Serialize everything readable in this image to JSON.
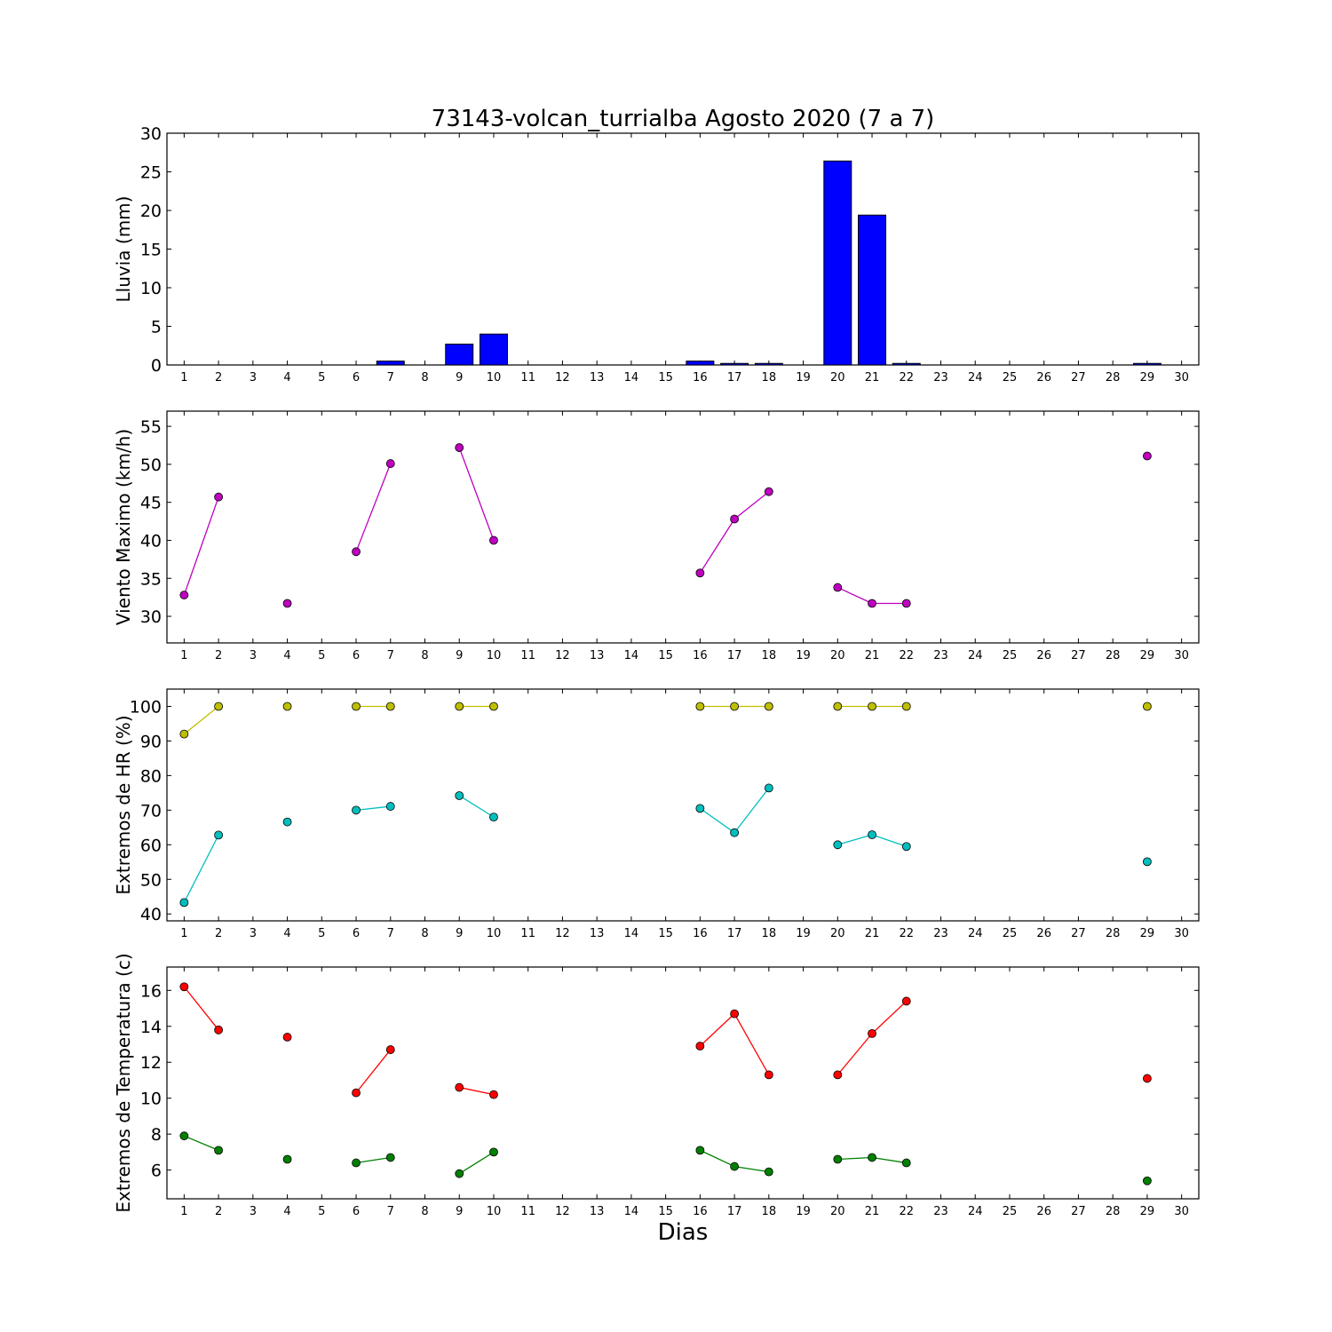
{
  "chart_data": {
    "title": "73143-volcan_turrialba Agosto 2020  (7 a 7)",
    "xlabel": "Dias",
    "x_ticks": [
      1,
      2,
      3,
      4,
      5,
      6,
      7,
      8,
      9,
      10,
      11,
      12,
      13,
      14,
      15,
      16,
      17,
      18,
      19,
      20,
      21,
      22,
      23,
      24,
      25,
      26,
      27,
      28,
      29,
      30
    ],
    "xlim": [
      0.5,
      30.5
    ],
    "panels": [
      {
        "type": "bar",
        "ylabel": "Lluvia (mm)",
        "ylim": [
          0,
          30
        ],
        "yticks": [
          0,
          5,
          10,
          15,
          20,
          25,
          30
        ],
        "series": [
          {
            "color": "#0000ff",
            "points": [
              [
                1,
                0
              ],
              [
                2,
                0
              ],
              [
                4,
                0
              ],
              [
                6,
                0
              ],
              [
                7,
                0.5
              ],
              [
                9,
                2.7
              ],
              [
                10,
                4.0
              ],
              [
                16,
                0.5
              ],
              [
                17,
                0.2
              ],
              [
                18,
                0.2
              ],
              [
                20,
                26.4
              ],
              [
                21,
                19.4
              ],
              [
                22,
                0.2
              ],
              [
                29,
                0.2
              ]
            ]
          }
        ]
      },
      {
        "type": "line",
        "ylabel": "Viento Maximo (km/h)",
        "ylim": [
          26.5,
          57
        ],
        "yticks": [
          30,
          35,
          40,
          45,
          50,
          55
        ],
        "series": [
          {
            "color": "#bf00bf",
            "points": [
              [
                1,
                32.8
              ],
              [
                2,
                45.7
              ],
              [
                4,
                31.7
              ],
              [
                6,
                38.5
              ],
              [
                7,
                50.1
              ],
              [
                9,
                52.2
              ],
              [
                10,
                40.0
              ],
              [
                16,
                35.7
              ],
              [
                17,
                42.8
              ],
              [
                18,
                46.4
              ],
              [
                20,
                33.8
              ],
              [
                21,
                31.7
              ],
              [
                22,
                31.7
              ],
              [
                29,
                51.1
              ]
            ]
          }
        ]
      },
      {
        "type": "line",
        "ylabel": "Extremos de HR (%)",
        "ylim": [
          38,
          105
        ],
        "yticks": [
          40,
          50,
          60,
          70,
          80,
          90,
          100
        ],
        "series": [
          {
            "color": "#bfbf00",
            "points": [
              [
                1,
                92
              ],
              [
                2,
                100
              ],
              [
                4,
                100
              ],
              [
                6,
                100
              ],
              [
                7,
                100
              ],
              [
                9,
                100
              ],
              [
                10,
                100
              ],
              [
                16,
                100
              ],
              [
                17,
                100
              ],
              [
                18,
                100
              ],
              [
                20,
                100
              ],
              [
                21,
                100
              ],
              [
                22,
                100
              ],
              [
                29,
                100
              ]
            ]
          },
          {
            "color": "#00bfbf",
            "points": [
              [
                1,
                43.3
              ],
              [
                2,
                62.8
              ],
              [
                4,
                66.6
              ],
              [
                6,
                70
              ],
              [
                7,
                71.1
              ],
              [
                9,
                74.2
              ],
              [
                10,
                68
              ],
              [
                16,
                70.5
              ],
              [
                17,
                63.5
              ],
              [
                18,
                76.4
              ],
              [
                20,
                60
              ],
              [
                21,
                62.9
              ],
              [
                22,
                59.5
              ],
              [
                29,
                55.1
              ]
            ]
          }
        ]
      },
      {
        "type": "line",
        "ylabel": "Extremos de Temperatura (c)",
        "ylim": [
          4.4,
          17.3
        ],
        "yticks": [
          6,
          8,
          10,
          12,
          14,
          16
        ],
        "series": [
          {
            "color": "#ff0000",
            "points": [
              [
                1,
                16.2
              ],
              [
                2,
                13.8
              ],
              [
                4,
                13.4
              ],
              [
                6,
                10.3
              ],
              [
                7,
                12.7
              ],
              [
                9,
                10.6
              ],
              [
                10,
                10.2
              ],
              [
                16,
                12.9
              ],
              [
                17,
                14.7
              ],
              [
                18,
                11.3
              ],
              [
                20,
                11.3
              ],
              [
                21,
                13.6
              ],
              [
                22,
                15.4
              ],
              [
                29,
                11.1
              ]
            ]
          },
          {
            "color": "#008000",
            "points": [
              [
                1,
                7.9
              ],
              [
                2,
                7.1
              ],
              [
                4,
                6.6
              ],
              [
                6,
                6.4
              ],
              [
                7,
                6.7
              ],
              [
                9,
                5.8
              ],
              [
                10,
                7.0
              ],
              [
                16,
                7.1
              ],
              [
                17,
                6.2
              ],
              [
                18,
                5.9
              ],
              [
                20,
                6.6
              ],
              [
                21,
                6.7
              ],
              [
                22,
                6.4
              ],
              [
                29,
                5.4
              ]
            ]
          }
        ]
      }
    ]
  }
}
